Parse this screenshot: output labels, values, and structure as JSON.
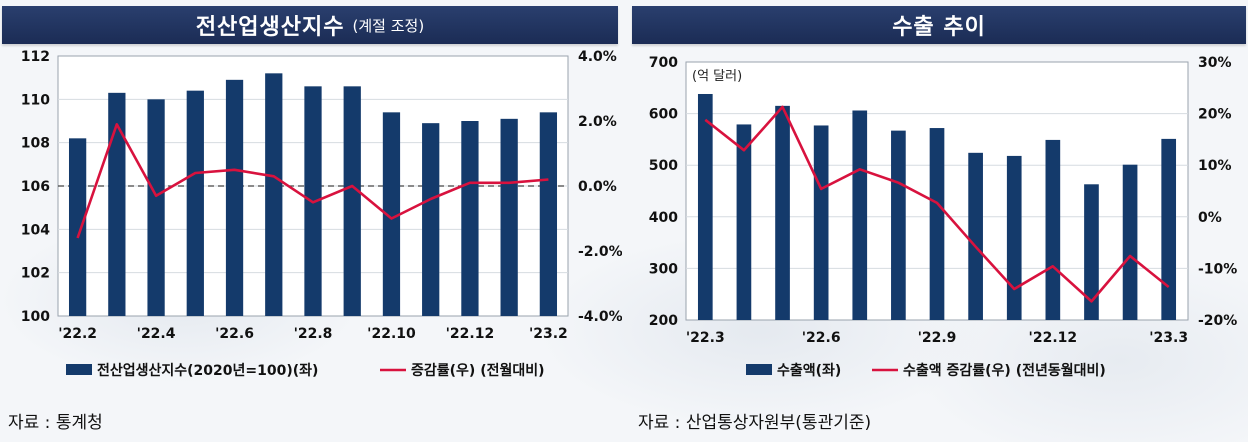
{
  "colors": {
    "bar": "#143a6b",
    "line": "#d8123e",
    "title_bg": "#1f315c"
  },
  "left_panel": {
    "title": "전산업생산지수",
    "title_sub": "(계절 조정)",
    "source": "자료 : 통계청"
  },
  "right_panel": {
    "title": "수출 추이",
    "source": "자료 : 산업통상자원부(통관기준)"
  },
  "chart_data": [
    {
      "type": "bar",
      "categories": [
        "'22.2",
        "'22.3",
        "'22.4",
        "'22.5",
        "'22.6",
        "'22.7",
        "'22.8",
        "'22.9",
        "'22.10",
        "'22.11",
        "'22.12",
        "'23.1",
        "'23.2"
      ],
      "x_tick_labels": [
        "'22.2",
        "'22.4",
        "'22.6",
        "'22.8",
        "'22.10",
        "'22.12",
        "'23.2"
      ],
      "series": [
        {
          "name": "전산업생산지수(2020년=100)(좌)",
          "axis": "left",
          "values": [
            108.2,
            110.3,
            110.0,
            110.4,
            110.9,
            111.2,
            110.6,
            110.6,
            109.4,
            108.9,
            109.0,
            109.1,
            109.4
          ]
        },
        {
          "name": "증감률(우) (전월대비)",
          "axis": "right",
          "kind": "line",
          "values": [
            -1.6,
            1.9,
            -0.3,
            0.4,
            0.5,
            0.3,
            -0.5,
            0.0,
            -1.0,
            -0.4,
            0.1,
            0.1,
            0.2
          ]
        }
      ],
      "ylim_left": [
        100,
        112
      ],
      "yticks_left": [
        "112",
        "110",
        "108",
        "106",
        "104",
        "102",
        "100"
      ],
      "ylim_right": [
        -4,
        4
      ],
      "yticks_right": [
        "4.0%",
        "2.0%",
        "0.0%",
        "-2.0%",
        "-4.0%"
      ],
      "reference_line": 0.0,
      "grid": true,
      "legend": [
        "전산업생산지수(2020년=100)(좌)",
        "증감률(우) (전월대비)"
      ]
    },
    {
      "type": "bar",
      "unit_label": "(억 달러)",
      "categories": [
        "'22.3",
        "'22.4",
        "'22.5",
        "'22.6",
        "'22.7",
        "'22.8",
        "'22.9",
        "'22.10",
        "'22.11",
        "'22.12",
        "'23.1",
        "'23.2",
        "'23.3"
      ],
      "x_tick_labels": [
        "'22.3",
        "'22.6",
        "'22.9",
        "'22.12",
        "'23.3"
      ],
      "series": [
        {
          "name": "수출액(좌)",
          "axis": "left",
          "values": [
            638,
            579,
            615,
            577,
            606,
            567,
            572,
            524,
            518,
            549,
            463,
            501,
            551
          ]
        },
        {
          "name": "수출액 증감률(우) (전년동월대비)",
          "axis": "right",
          "kind": "line",
          "values": [
            18.8,
            12.9,
            21.3,
            5.4,
            9.2,
            6.6,
            2.7,
            -5.8,
            -14.0,
            -9.6,
            -16.4,
            -7.6,
            -13.6
          ]
        }
      ],
      "ylim_left": [
        200,
        700
      ],
      "yticks_left": [
        "700",
        "600",
        "500",
        "400",
        "300",
        "200"
      ],
      "ylim_right": [
        -20,
        30
      ],
      "yticks_right": [
        "30%",
        "20%",
        "10%",
        "0%",
        "-10%",
        "-20%"
      ],
      "grid": true,
      "legend": [
        "수출액(좌)",
        "수출액 증감률(우) (전년동월대비)"
      ]
    }
  ]
}
